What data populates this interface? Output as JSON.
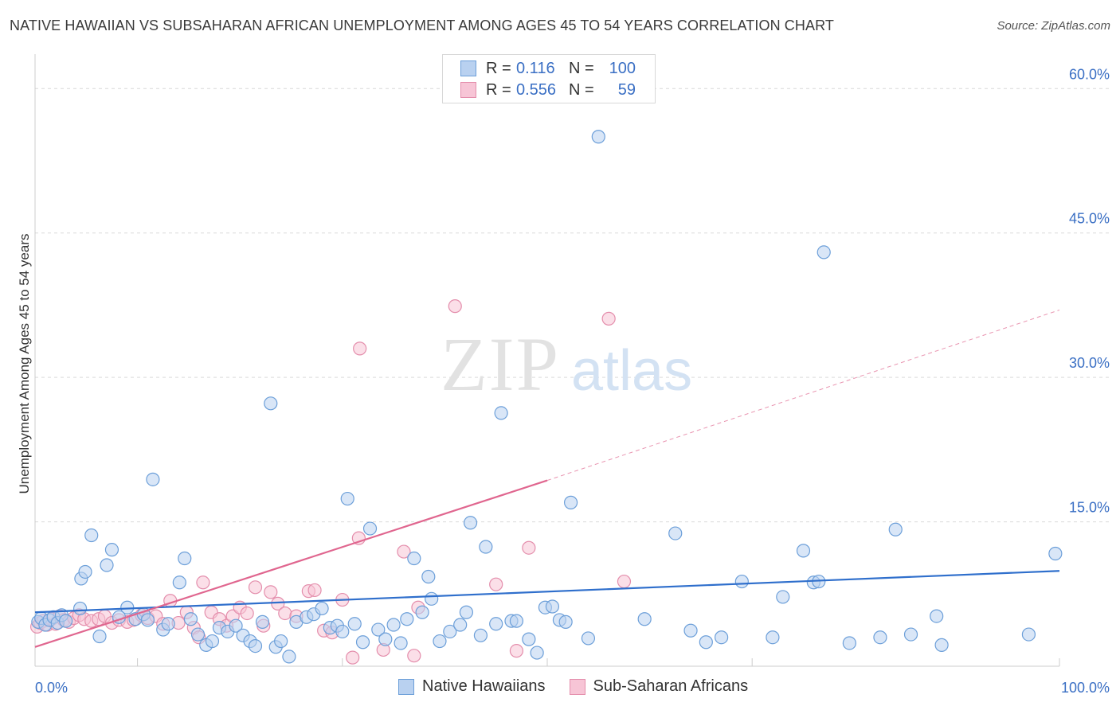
{
  "title": "NATIVE HAWAIIAN VS SUBSAHARAN AFRICAN UNEMPLOYMENT AMONG AGES 45 TO 54 YEARS CORRELATION CHART",
  "source": "Source: ZipAtlas.com",
  "watermark": {
    "zip": "ZIP",
    "atlas": "atlas"
  },
  "colors": {
    "blue_fill": "#b9d1f0",
    "blue_stroke": "#6c9fd9",
    "blue_line": "#2f6fcc",
    "pink_fill": "#f7c5d6",
    "pink_stroke": "#e48eac",
    "pink_line": "#e0668f",
    "tick_label": "#3a6fc4",
    "grid": "#d9d9d9"
  },
  "legend": {
    "rows": [
      {
        "r_label": "R =",
        "r_value": "0.116",
        "n_label": "N =",
        "n_value": "100"
      },
      {
        "r_label": "R =",
        "r_value": "0.556",
        "n_label": "N =",
        "n_value": "59"
      }
    ]
  },
  "bottom_legend": [
    "Native Hawaiians",
    "Sub-Saharan Africans"
  ],
  "chart_data": {
    "type": "scatter",
    "xlabel": "",
    "ylabel": "Unemployment Among Ages 45 to 54 years",
    "xlim": [
      0,
      100
    ],
    "ylim": [
      0,
      63
    ],
    "x_tick_labels": [
      {
        "value": 0,
        "label": "0.0%"
      },
      {
        "value": 100,
        "label": "100.0%"
      }
    ],
    "y_tick_labels": [
      {
        "value": 15,
        "label": "15.0%"
      },
      {
        "value": 30,
        "label": "30.0%"
      },
      {
        "value": 45,
        "label": "45.0%"
      },
      {
        "value": 60,
        "label": "60.0%"
      }
    ],
    "y_gridlines": [
      15,
      30,
      45,
      60
    ],
    "x_minor_ticks": [
      0,
      10,
      30,
      50,
      70,
      100
    ],
    "series": [
      {
        "name": "Native Hawaiians",
        "color": "blue",
        "trend": {
          "x0": 0,
          "y0": 5.6,
          "x1": 100,
          "y1": 9.9
        },
        "points": [
          [
            0.3,
            4.6
          ],
          [
            0.6,
            5.0
          ],
          [
            1.0,
            4.3
          ],
          [
            1.4,
            4.8
          ],
          [
            1.8,
            5.1
          ],
          [
            2.2,
            4.5
          ],
          [
            2.6,
            5.3
          ],
          [
            3.0,
            4.7
          ],
          [
            4.5,
            9.1
          ],
          [
            4.9,
            9.8
          ],
          [
            4.4,
            6.0
          ],
          [
            5.5,
            13.6
          ],
          [
            6.3,
            3.1
          ],
          [
            7.0,
            10.5
          ],
          [
            7.5,
            12.1
          ],
          [
            8.2,
            5.1
          ],
          [
            9.0,
            6.1
          ],
          [
            9.8,
            4.9
          ],
          [
            10.6,
            5.4
          ],
          [
            11.0,
            4.8
          ],
          [
            11.5,
            19.4
          ],
          [
            12.5,
            3.8
          ],
          [
            13.0,
            4.4
          ],
          [
            14.1,
            8.7
          ],
          [
            14.6,
            11.2
          ],
          [
            15.2,
            4.9
          ],
          [
            15.9,
            3.3
          ],
          [
            16.7,
            2.2
          ],
          [
            17.3,
            2.6
          ],
          [
            18.0,
            4.0
          ],
          [
            18.8,
            3.6
          ],
          [
            19.6,
            4.2
          ],
          [
            20.3,
            3.2
          ],
          [
            21.0,
            2.6
          ],
          [
            21.5,
            2.1
          ],
          [
            22.2,
            4.6
          ],
          [
            23.0,
            27.3
          ],
          [
            23.5,
            2.0
          ],
          [
            24.0,
            2.6
          ],
          [
            24.8,
            1.0
          ],
          [
            25.5,
            4.6
          ],
          [
            26.5,
            5.1
          ],
          [
            27.2,
            5.4
          ],
          [
            28.0,
            6.0
          ],
          [
            28.8,
            4.0
          ],
          [
            29.5,
            4.2
          ],
          [
            30.0,
            3.6
          ],
          [
            30.5,
            17.4
          ],
          [
            31.2,
            4.4
          ],
          [
            32.0,
            2.5
          ],
          [
            32.7,
            14.3
          ],
          [
            33.5,
            3.8
          ],
          [
            34.2,
            2.8
          ],
          [
            35.0,
            4.3
          ],
          [
            35.7,
            2.4
          ],
          [
            36.3,
            4.9
          ],
          [
            37.0,
            11.2
          ],
          [
            37.8,
            5.6
          ],
          [
            38.4,
            9.3
          ],
          [
            38.7,
            7.0
          ],
          [
            39.5,
            2.6
          ],
          [
            40.5,
            3.6
          ],
          [
            41.5,
            4.3
          ],
          [
            42.1,
            5.6
          ],
          [
            42.5,
            14.9
          ],
          [
            43.5,
            3.2
          ],
          [
            44.0,
            12.4
          ],
          [
            45.0,
            4.4
          ],
          [
            45.5,
            26.3
          ],
          [
            46.5,
            4.7
          ],
          [
            47.0,
            4.7
          ],
          [
            48.2,
            2.8
          ],
          [
            49.0,
            1.4
          ],
          [
            49.8,
            6.1
          ],
          [
            50.5,
            6.2
          ],
          [
            51.2,
            4.8
          ],
          [
            51.8,
            4.6
          ],
          [
            52.3,
            17.0
          ],
          [
            54.0,
            2.9
          ],
          [
            55.0,
            55.0
          ],
          [
            59.5,
            4.9
          ],
          [
            62.5,
            13.8
          ],
          [
            64.0,
            3.7
          ],
          [
            65.5,
            2.5
          ],
          [
            67.0,
            3.0
          ],
          [
            69.0,
            8.8
          ],
          [
            72.0,
            3.0
          ],
          [
            73.0,
            7.2
          ],
          [
            75.0,
            12.0
          ],
          [
            76.0,
            8.7
          ],
          [
            76.5,
            8.8
          ],
          [
            77.0,
            43.0
          ],
          [
            79.5,
            2.4
          ],
          [
            82.5,
            3.0
          ],
          [
            84.0,
            14.2
          ],
          [
            85.5,
            3.3
          ],
          [
            88.0,
            5.2
          ],
          [
            88.5,
            2.2
          ],
          [
            97.0,
            3.3
          ],
          [
            99.6,
            11.7
          ]
        ]
      },
      {
        "name": "Sub-Saharan Africans",
        "color": "pink",
        "trend": {
          "x0": 0,
          "y0": 2.0,
          "x1": 50,
          "y1": 19.3,
          "dashed_to_x": 100,
          "dashed_to_y": 37.0
        },
        "points": [
          [
            0.2,
            4.1
          ],
          [
            0.5,
            4.5
          ],
          [
            0.8,
            4.7
          ],
          [
            1.2,
            4.3
          ],
          [
            1.6,
            4.9
          ],
          [
            2.0,
            4.4
          ],
          [
            2.4,
            5.2
          ],
          [
            2.8,
            4.8
          ],
          [
            3.3,
            4.6
          ],
          [
            3.8,
            5.0
          ],
          [
            4.3,
            5.3
          ],
          [
            4.8,
            4.9
          ],
          [
            5.5,
            4.7
          ],
          [
            6.2,
            4.9
          ],
          [
            6.8,
            5.2
          ],
          [
            7.5,
            4.5
          ],
          [
            8.2,
            4.8
          ],
          [
            9.0,
            4.6
          ],
          [
            9.6,
            4.8
          ],
          [
            10.4,
            5.3
          ],
          [
            11.0,
            5.0
          ],
          [
            11.8,
            5.2
          ],
          [
            12.5,
            4.4
          ],
          [
            13.2,
            6.8
          ],
          [
            14.0,
            4.5
          ],
          [
            14.8,
            5.6
          ],
          [
            15.5,
            4.0
          ],
          [
            16.0,
            3.0
          ],
          [
            16.4,
            8.7
          ],
          [
            17.2,
            5.6
          ],
          [
            18.0,
            4.9
          ],
          [
            18.7,
            4.2
          ],
          [
            19.3,
            5.2
          ],
          [
            20.0,
            6.1
          ],
          [
            20.7,
            5.5
          ],
          [
            21.5,
            8.2
          ],
          [
            22.3,
            4.2
          ],
          [
            23.0,
            7.7
          ],
          [
            23.7,
            6.5
          ],
          [
            24.4,
            5.5
          ],
          [
            25.5,
            5.2
          ],
          [
            26.7,
            7.8
          ],
          [
            27.3,
            7.9
          ],
          [
            28.2,
            3.7
          ],
          [
            29.0,
            3.5
          ],
          [
            30.0,
            6.9
          ],
          [
            31.0,
            0.9
          ],
          [
            31.7,
            33.0
          ],
          [
            31.6,
            13.3
          ],
          [
            34.0,
            1.7
          ],
          [
            36.0,
            11.9
          ],
          [
            37.0,
            1.1
          ],
          [
            37.4,
            6.1
          ],
          [
            41.0,
            37.4
          ],
          [
            45.0,
            8.5
          ],
          [
            47.0,
            1.6
          ],
          [
            48.2,
            12.3
          ],
          [
            56.0,
            36.1
          ],
          [
            57.5,
            8.8
          ]
        ]
      }
    ]
  }
}
